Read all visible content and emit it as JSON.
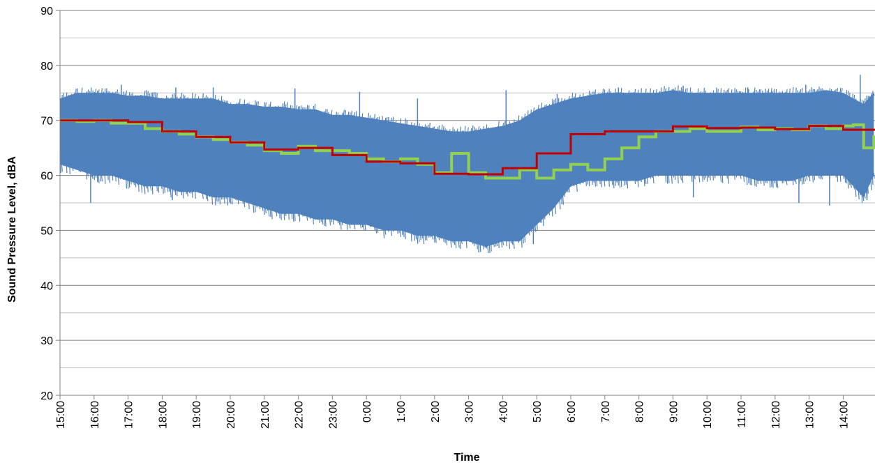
{
  "chart_data": {
    "type": "line",
    "title": "",
    "xlabel": "Time",
    "ylabel": "Sound Pressure Level, dBA",
    "x_ticks": [
      "15:00",
      "16:00",
      "17:00",
      "18:00",
      "19:00",
      "20:00",
      "21:00",
      "22:00",
      "23:00",
      "0:00",
      "1:00",
      "2:00",
      "3:00",
      "4:00",
      "5:00",
      "6:00",
      "7:00",
      "8:00",
      "9:00",
      "10:00",
      "11:00",
      "12:00",
      "13:00",
      "14:00"
    ],
    "x_range_hours": [
      0,
      23.9
    ],
    "ylim": [
      20,
      90
    ],
    "y_ticks": [
      20,
      30,
      40,
      50,
      60,
      70,
      80,
      90
    ],
    "y_minor_gridlines": [
      25,
      35,
      45,
      55,
      65,
      75,
      85
    ],
    "grid": true,
    "legend": "none",
    "colors": {
      "instantaneous": "#4f81bd",
      "green_step": "#92d050",
      "red_step": "#c00000",
      "gridline": "#bfbfbf",
      "major_gridline": "#808080"
    },
    "series": [
      {
        "role": "instantaneous-band",
        "x_hours": [
          0,
          0.5,
          1,
          1.5,
          2,
          2.5,
          3,
          3.5,
          4,
          4.5,
          5,
          5.5,
          6,
          6.5,
          7,
          7.5,
          8,
          8.5,
          9,
          9.5,
          10,
          10.5,
          11,
          11.5,
          12,
          12.5,
          13,
          13.5,
          14,
          14.5,
          15,
          15.5,
          16,
          16.5,
          17,
          17.5,
          18,
          18.5,
          19,
          19.5,
          20,
          20.5,
          21,
          21.5,
          22,
          22.5,
          23,
          23.3,
          23.6,
          23.9
        ],
        "upper": [
          74,
          75,
          75,
          75,
          74.5,
          74.5,
          74,
          74,
          74,
          74,
          73,
          73,
          72.5,
          72.5,
          72,
          72,
          71,
          71,
          70.5,
          70,
          69.5,
          69,
          68.5,
          68,
          68,
          68.5,
          69,
          70,
          72,
          73,
          74,
          74.5,
          75,
          75,
          75,
          75,
          75.5,
          75,
          75,
          75,
          75,
          75,
          75,
          75,
          75,
          75.5,
          75,
          74,
          73,
          75
        ],
        "lower": [
          62,
          61,
          60,
          60,
          59,
          58,
          58,
          57,
          57,
          56,
          56,
          55,
          54,
          53,
          53,
          52,
          52,
          51,
          51,
          50,
          50,
          49,
          49,
          48,
          48,
          47,
          48,
          48,
          51,
          54,
          58,
          59,
          59,
          59,
          59,
          60,
          60,
          60,
          60,
          60,
          60,
          59,
          59,
          59,
          60,
          60,
          60,
          58,
          56,
          60
        ],
        "spikes_high": [
          [
            1.8,
            76.5
          ],
          [
            3.4,
            76
          ],
          [
            4.5,
            76
          ],
          [
            6.9,
            75.8
          ],
          [
            8.8,
            75.2
          ],
          [
            10.5,
            74
          ],
          [
            13.1,
            75.5
          ],
          [
            14.6,
            74.8
          ],
          [
            16.4,
            76
          ],
          [
            18.3,
            76.3
          ],
          [
            20.2,
            76
          ],
          [
            21.9,
            76.5
          ],
          [
            23.5,
            78.3
          ]
        ],
        "spikes_low": [
          [
            0.9,
            55
          ],
          [
            3.3,
            55.5
          ],
          [
            8.1,
            53
          ],
          [
            9.7,
            50
          ],
          [
            11.2,
            48.5
          ],
          [
            12.3,
            46
          ],
          [
            13.4,
            48
          ],
          [
            13.9,
            47.5
          ],
          [
            18.6,
            56
          ],
          [
            21.7,
            55
          ],
          [
            22.6,
            54.5
          ],
          [
            23.7,
            55.5
          ]
        ]
      },
      {
        "role": "green-step",
        "x_hours": [
          0,
          0.5,
          1,
          1.5,
          2,
          2.5,
          3,
          3.5,
          4,
          4.5,
          5,
          5.5,
          6,
          6.5,
          7,
          7.5,
          8,
          8.5,
          9,
          9.5,
          10,
          10.5,
          11,
          11.5,
          12,
          12.5,
          13,
          13.5,
          14,
          14.5,
          15,
          15.5,
          16,
          16.5,
          17,
          17.5,
          18,
          18.5,
          19,
          19.5,
          20,
          20.5,
          21,
          21.5,
          22,
          22.5,
          23,
          23.3,
          23.6,
          23.9
        ],
        "values": [
          70,
          69.8,
          70,
          69.5,
          69.5,
          68.5,
          68,
          67.5,
          67,
          66.5,
          66,
          65.5,
          64.5,
          64,
          65.3,
          64.5,
          64.5,
          64,
          63,
          62.5,
          63,
          62,
          60.5,
          64,
          60.5,
          59.5,
          59.5,
          61,
          59.5,
          61,
          62,
          61,
          63,
          65,
          67,
          68,
          68,
          68.5,
          68,
          68,
          68.8,
          68.3,
          68.5,
          68.3,
          69,
          68.5,
          69,
          69.2,
          65,
          67
        ]
      },
      {
        "role": "red-step",
        "x_hours": [
          0,
          1,
          2,
          3,
          4,
          5,
          6,
          7,
          8,
          9,
          10,
          11,
          12,
          13,
          14,
          15,
          16,
          17,
          18,
          19,
          20,
          21,
          22,
          23,
          23.9
        ],
        "values": [
          70,
          70,
          69.7,
          68,
          67,
          66,
          64.7,
          65,
          63.7,
          62.5,
          62.2,
          60.3,
          60.2,
          61.3,
          64,
          67.5,
          68,
          68,
          68.9,
          68.6,
          68.7,
          68.4,
          69,
          68.3,
          68.3
        ]
      }
    ]
  }
}
